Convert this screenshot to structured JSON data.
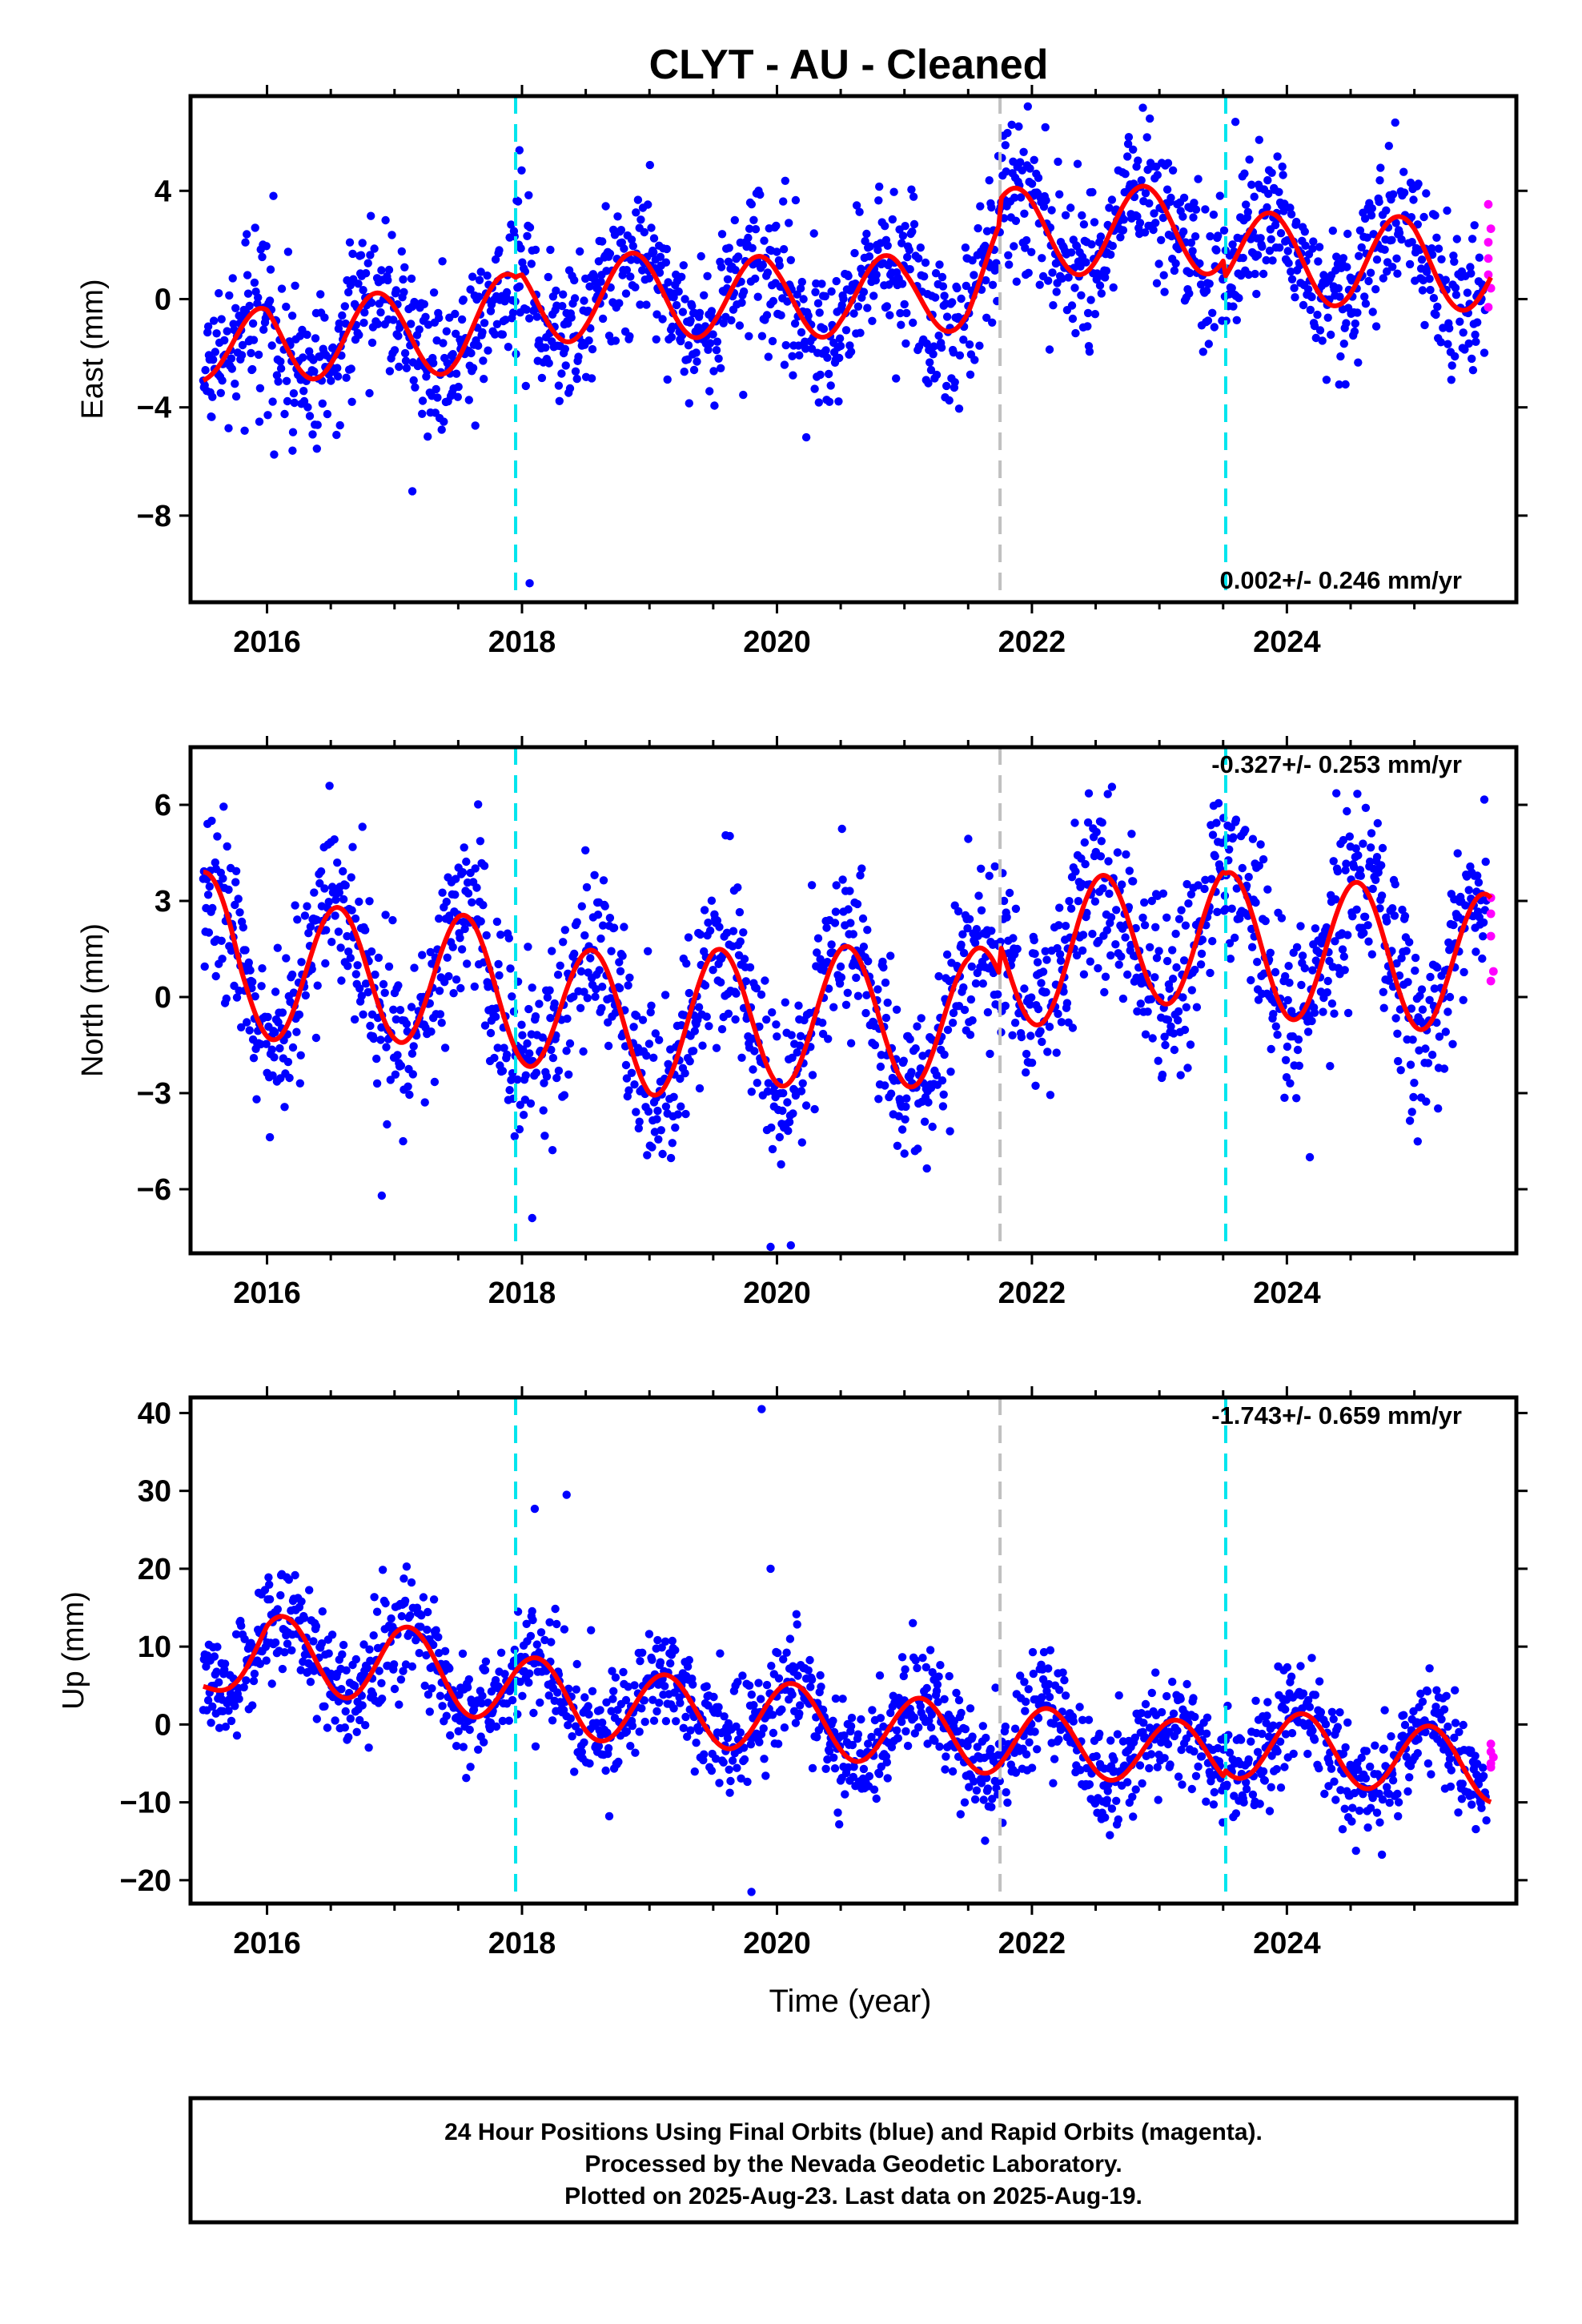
{
  "title": "CLYT  - AU - Cleaned",
  "xlabel": "Time (year)",
  "footer": {
    "line1": "24 Hour Positions Using Final Orbits (blue) and Rapid Orbits (magenta).",
    "line2": "Processed by the Nevada Geodetic Laboratory.",
    "line3": "Plotted on 2025-Aug-23. Last data on 2025-Aug-19."
  },
  "colors": {
    "final_orbits": "#0000ff",
    "rapid_orbits": "#ff00ff",
    "model_fit": "#ff0000",
    "equipment_change": "#00e5ee",
    "other_offset": "#c0c0c0"
  },
  "chart_data": [
    {
      "type": "scatter",
      "name": "east",
      "ylabel": "East (mm)",
      "rate": "0.002+/- 0.246 mm/yr",
      "xlim": [
        2015.4,
        2025.8
      ],
      "ylim": [
        -11.2,
        7.5
      ],
      "xticks": [
        "2016",
        "2018",
        "2020",
        "2022",
        "2024"
      ],
      "yticks": [
        "4",
        "0",
        "−4",
        "−8"
      ],
      "ytick_values": [
        4,
        0,
        -4,
        -8
      ],
      "cyan_offsets": [
        2017.95,
        2023.52
      ],
      "grey_offsets": [
        2021.75
      ],
      "rapid_points": [
        [
          2025.58,
          3.5
        ],
        [
          2025.58,
          2.1
        ],
        [
          2025.58,
          1.5
        ],
        [
          2025.58,
          0.9
        ],
        [
          2025.58,
          -0.3
        ],
        [
          2025.6,
          2.6
        ],
        [
          2025.6,
          0.4
        ]
      ],
      "outliers": [
        [
          2018.06,
          -10.5
        ],
        [
          2017.98,
          5.5
        ],
        [
          2016.2,
          -5.6
        ],
        [
          2017.14,
          -7.1
        ]
      ],
      "model": {
        "mean": [
          [
            2015.5,
            -2.8
          ],
          [
            2016.0,
            -1.5
          ],
          [
            2016.5,
            -1.3
          ],
          [
            2017.0,
            -1.4
          ],
          [
            2017.5,
            -1.1
          ],
          [
            2017.95,
            -0.6
          ],
          [
            2018.0,
            -0.2
          ],
          [
            2018.5,
            0.1
          ],
          [
            2019.0,
            0.1
          ],
          [
            2019.5,
            0.2
          ],
          [
            2020.0,
            -0.1
          ],
          [
            2020.5,
            0.3
          ],
          [
            2021.0,
            -0.1
          ],
          [
            2021.5,
            0.6
          ],
          [
            2021.74,
            1.6
          ],
          [
            2021.76,
            2.5
          ],
          [
            2022.5,
            2.5
          ],
          [
            2023.0,
            2.6
          ],
          [
            2023.5,
            2.5
          ],
          [
            2023.52,
            1.8
          ],
          [
            2024.0,
            1.5
          ],
          [
            2024.5,
            1.3
          ],
          [
            2025.0,
            1.5
          ],
          [
            2025.6,
            1.0
          ]
        ],
        "amp": [
          [
            2015.5,
            0.3
          ],
          [
            2016.0,
            1.6
          ],
          [
            2017.0,
            1.6
          ],
          [
            2018.0,
            1.6
          ],
          [
            2019.0,
            1.6
          ],
          [
            2020.0,
            1.6
          ],
          [
            2021.0,
            1.6
          ],
          [
            2022.0,
            1.6
          ],
          [
            2023.0,
            1.6
          ],
          [
            2024.0,
            1.6
          ],
          [
            2025.0,
            1.6
          ],
          [
            2025.6,
            1.6
          ]
        ],
        "peak_phase": 0.87,
        "noise": 1.4
      }
    },
    {
      "type": "scatter",
      "name": "north",
      "ylabel": "North (mm)",
      "rate": "-0.327+/- 0.253 mm/yr",
      "xlim": [
        2015.4,
        2025.8
      ],
      "ylim": [
        -8.0,
        7.8
      ],
      "xticks": [
        "2016",
        "2018",
        "2020",
        "2022",
        "2024"
      ],
      "yticks": [
        "6",
        "3",
        "0",
        "−3",
        "−6"
      ],
      "ytick_values": [
        6,
        3,
        0,
        -3,
        -6
      ],
      "cyan_offsets": [
        2017.95,
        2023.52
      ],
      "grey_offsets": [
        2021.75
      ],
      "rapid_points": [
        [
          2025.6,
          3.1
        ],
        [
          2025.6,
          2.6
        ],
        [
          2025.6,
          1.9
        ],
        [
          2025.6,
          0.5
        ],
        [
          2025.62,
          0.8
        ]
      ],
      "outliers": [
        [
          2016.9,
          -6.2
        ],
        [
          2018.08,
          -6.9
        ],
        [
          2019.95,
          -7.8
        ],
        [
          2024.18,
          -5.0
        ],
        [
          2015.6,
          4.0
        ]
      ],
      "model": {
        "mean": [
          [
            2015.5,
            2.0
          ],
          [
            2015.8,
            0.8
          ],
          [
            2016.5,
            0.7
          ],
          [
            2017.0,
            0.7
          ],
          [
            2017.5,
            0.5
          ],
          [
            2018.0,
            0.0
          ],
          [
            2018.5,
            -0.6
          ],
          [
            2019.0,
            -1.0
          ],
          [
            2019.5,
            -0.6
          ],
          [
            2020.0,
            -0.7
          ],
          [
            2020.5,
            -0.5
          ],
          [
            2021.0,
            -0.7
          ],
          [
            2021.5,
            -0.8
          ],
          [
            2021.74,
            0.0
          ],
          [
            2021.76,
            1.0
          ],
          [
            2022.5,
            1.6
          ],
          [
            2023.0,
            2.0
          ],
          [
            2023.5,
            1.8
          ],
          [
            2023.52,
            1.7
          ],
          [
            2024.0,
            1.5
          ],
          [
            2024.5,
            1.4
          ],
          [
            2025.0,
            1.2
          ],
          [
            2025.6,
            1.0
          ]
        ],
        "amp": [
          [
            2015.5,
            2.0
          ],
          [
            2016.0,
            2.1
          ],
          [
            2017.0,
            2.1
          ],
          [
            2018.0,
            2.1
          ],
          [
            2019.0,
            2.1
          ],
          [
            2020.0,
            2.1
          ],
          [
            2021.0,
            2.1
          ],
          [
            2022.0,
            2.1
          ],
          [
            2023.0,
            2.2
          ],
          [
            2024.0,
            2.2
          ],
          [
            2025.0,
            2.2
          ],
          [
            2025.6,
            2.2
          ]
        ],
        "peak_phase": 0.55,
        "noise": 1.4
      }
    },
    {
      "type": "scatter",
      "name": "up",
      "ylabel": "Up (mm)",
      "rate": "-1.743+/- 0.659 mm/yr",
      "xlim": [
        2015.4,
        2025.8
      ],
      "ylim": [
        -23.0,
        42.0
      ],
      "xticks": [
        "2016",
        "2018",
        "2020",
        "2022",
        "2024"
      ],
      "yticks": [
        "40",
        "30",
        "20",
        "10",
        "0",
        "−10",
        "−20"
      ],
      "ytick_values": [
        40,
        30,
        20,
        10,
        0,
        -10,
        -20
      ],
      "cyan_offsets": [
        2017.95,
        2023.52
      ],
      "grey_offsets": [
        2021.75
      ],
      "rapid_points": [
        [
          2025.6,
          -2.5
        ],
        [
          2025.6,
          -3.5
        ],
        [
          2025.6,
          -5.0
        ],
        [
          2025.6,
          -5.5
        ],
        [
          2025.62,
          -4.2
        ]
      ],
      "outliers": [
        [
          2019.88,
          40.5
        ],
        [
          2018.35,
          29.5
        ],
        [
          2018.1,
          27.7
        ],
        [
          2019.8,
          -21.5
        ],
        [
          2019.95,
          20.0
        ]
      ],
      "model": {
        "mean": [
          [
            2015.5,
            6.0
          ],
          [
            2016.0,
            9.0
          ],
          [
            2017.0,
            8.0
          ],
          [
            2017.5,
            6.0
          ],
          [
            2018.0,
            4.5
          ],
          [
            2018.5,
            2.5
          ],
          [
            2019.0,
            2.0
          ],
          [
            2019.5,
            1.5
          ],
          [
            2020.0,
            1.0
          ],
          [
            2020.5,
            0.0
          ],
          [
            2021.0,
            -1.0
          ],
          [
            2021.5,
            -1.5
          ],
          [
            2021.74,
            -2.0
          ],
          [
            2021.76,
            -2.0
          ],
          [
            2022.5,
            -2.8
          ],
          [
            2023.0,
            -3.5
          ],
          [
            2023.5,
            -3.5
          ],
          [
            2023.52,
            -2.5
          ],
          [
            2024.0,
            -3.0
          ],
          [
            2024.5,
            -3.5
          ],
          [
            2025.0,
            -4.5
          ],
          [
            2025.6,
            -5.5
          ]
        ],
        "amp": [
          [
            2015.5,
            1.5
          ],
          [
            2016.0,
            5.0
          ],
          [
            2017.0,
            5.0
          ],
          [
            2018.0,
            4.5
          ],
          [
            2019.0,
            4.5
          ],
          [
            2020.0,
            4.5
          ],
          [
            2021.0,
            4.5
          ],
          [
            2022.0,
            4.5
          ],
          [
            2023.0,
            4.0
          ],
          [
            2024.0,
            4.5
          ],
          [
            2025.0,
            4.5
          ],
          [
            2025.6,
            4.5
          ]
        ],
        "peak_phase": 0.12,
        "noise": 3.5
      }
    }
  ]
}
